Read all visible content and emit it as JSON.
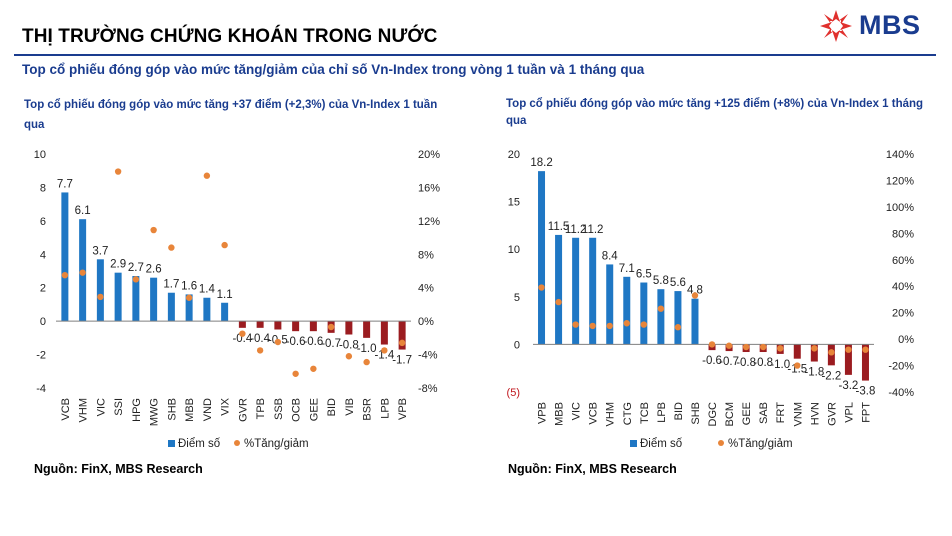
{
  "header": {
    "title": "THỊ TRƯỜNG CHỨNG KHOÁN TRONG NƯỚC",
    "subtitle": "Top cổ phiếu đóng góp vào mức tăng/giảm của chỉ số Vn-Index trong vòng 1 tuần và 1 tháng qua",
    "logo_text": "MBS"
  },
  "colors": {
    "brand": "#1a3c8f",
    "logo_mark": "#e0312e",
    "bar_positive": "#1f77c4",
    "bar_negative": "#9b1c20",
    "marker": "#e8853a"
  },
  "chart_data": [
    {
      "type": "bar",
      "title": "Top cổ phiếu đóng góp vào mức tăng +37 điểm (+2,3%) của Vn-Index 1 tuần qua",
      "categories": [
        "VCB",
        "VHM",
        "VIC",
        "SSI",
        "HPG",
        "MWG",
        "SHB",
        "MBB",
        "VND",
        "VIX",
        "GVR",
        "TPB",
        "SSB",
        "OCB",
        "GEE",
        "BID",
        "VIB",
        "BSR",
        "LPB",
        "VPB"
      ],
      "series": [
        {
          "name": "Điểm số",
          "axis": "left",
          "values": [
            7.7,
            6.1,
            3.7,
            2.9,
            2.7,
            2.6,
            1.7,
            1.6,
            1.4,
            1.1,
            -0.4,
            -0.4,
            -0.5,
            -0.6,
            -0.6,
            -0.7,
            -0.8,
            -1.0,
            -1.4,
            -1.7
          ],
          "labels": [
            "7.7",
            "6.1",
            "3.7",
            "2.9",
            "2.7",
            "2.6",
            "1.7",
            "1.6",
            "1.4",
            "1.1",
            "-0.4",
            "-0.4",
            "-0.5",
            "-0.6",
            "-0.6",
            "-0.7",
            "-0.8",
            "-1.0",
            "-1.4",
            "-1.7"
          ]
        },
        {
          "name": "%Tăng/giảm",
          "axis": "right",
          "type": "scatter",
          "values": [
            5.5,
            5.8,
            2.9,
            17.9,
            5.0,
            10.9,
            8.8,
            2.8,
            17.4,
            9.1,
            -1.5,
            -3.5,
            -2.5,
            -6.3,
            -5.7,
            -0.7,
            -4.2,
            -4.9,
            -3.5,
            -2.6
          ]
        }
      ],
      "y_left": {
        "min": -4,
        "max": 10,
        "ticks": [
          "-4",
          "-2",
          "0",
          "2",
          "4",
          "6",
          "8",
          "10"
        ]
      },
      "y_right": {
        "min": -8,
        "max": 20,
        "ticks": [
          "-8%",
          "-4%",
          "0%",
          "4%",
          "8%",
          "12%",
          "16%",
          "20%"
        ]
      },
      "legend": {
        "position": "bottom",
        "items": [
          "Điểm số",
          "%Tăng/giảm"
        ]
      },
      "grid": false
    },
    {
      "type": "bar",
      "title": "Top cổ phiếu đóng góp vào mức tăng +125 điểm (+8%) của Vn-Index 1 tháng qua",
      "categories": [
        "VPB",
        "MBB",
        "VIC",
        "VCB",
        "VHM",
        "CTG",
        "TCB",
        "LPB",
        "BID",
        "SHB",
        "DGC",
        "BCM",
        "GEE",
        "SAB",
        "FRT",
        "VNM",
        "HVN",
        "GVR",
        "VPL",
        "FPT"
      ],
      "series": [
        {
          "name": "Điểm số",
          "axis": "left",
          "values": [
            18.2,
            11.5,
            11.2,
            11.2,
            8.4,
            7.1,
            6.5,
            5.8,
            5.6,
            4.8,
            -0.6,
            -0.7,
            -0.8,
            -0.8,
            -1.0,
            -1.5,
            -1.8,
            -2.2,
            -3.2,
            -3.8
          ],
          "labels": [
            "18.2",
            "11.5",
            "11.2",
            "11.2",
            "8.4",
            "7.1",
            "6.5",
            "5.8",
            "5.6",
            "4.8",
            "-0.6",
            "-0.7",
            "-0.8",
            "-0.8",
            "-1.0",
            "-1.5",
            "-1.8",
            "-2.2",
            "-3.2",
            "-3.8"
          ]
        },
        {
          "name": "%Tăng/giảm",
          "axis": "right",
          "type": "scatter",
          "values": [
            39,
            28,
            11,
            10,
            10,
            12,
            11,
            23,
            9,
            33,
            -4,
            -5,
            -6,
            -6,
            -7,
            -20,
            -7,
            -10,
            -8,
            -8
          ]
        }
      ],
      "y_left": {
        "min": -5,
        "max": 20,
        "ticks": [
          "(5)",
          "0",
          "5",
          "10",
          "15",
          "20"
        ]
      },
      "y_right": {
        "min": -40,
        "max": 140,
        "ticks": [
          "-40%",
          "-20%",
          "0%",
          "20%",
          "40%",
          "60%",
          "80%",
          "100%",
          "120%",
          "140%"
        ]
      },
      "legend": {
        "position": "bottom",
        "items": [
          "Điểm số",
          "%Tăng/giảm"
        ]
      },
      "grid": false
    }
  ],
  "sources": [
    "Nguồn: FinX, MBS Research",
    "Nguồn: FinX, MBS Research"
  ]
}
